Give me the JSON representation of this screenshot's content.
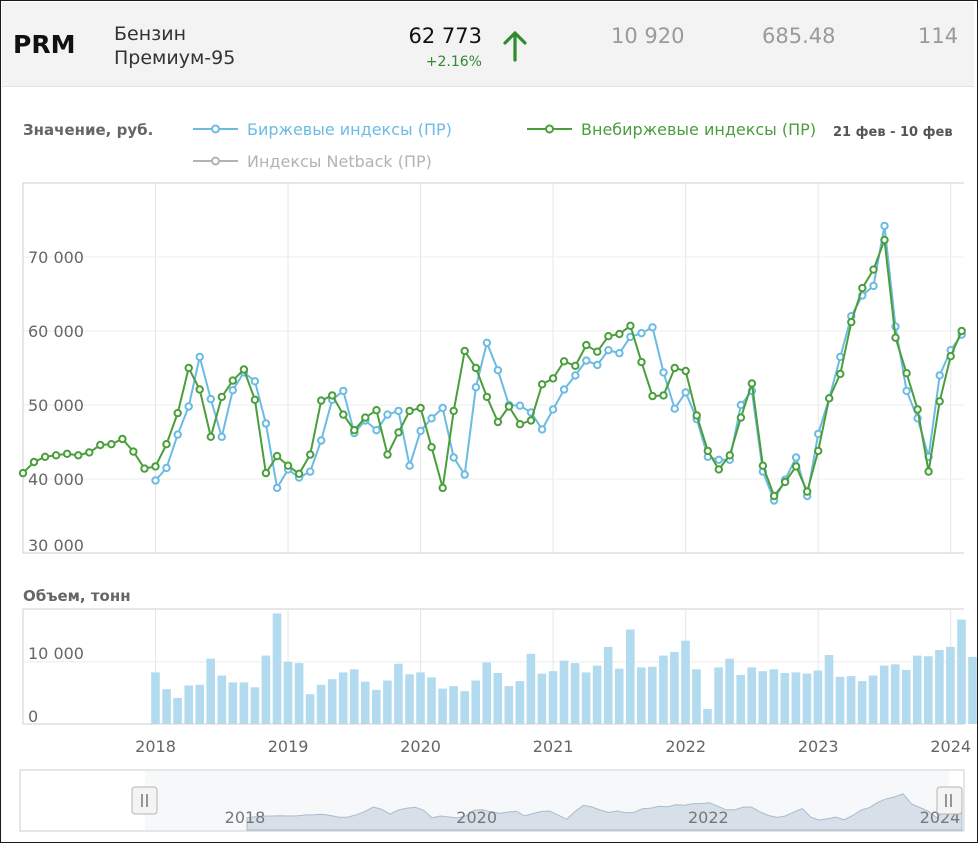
{
  "header": {
    "ticker": "PRM",
    "name_line1": "Бензин",
    "name_line2": "Премиум-95",
    "price": "62 773",
    "change": "+2.16%",
    "stat1": "10 920",
    "stat2": "685.48",
    "stat3": "114",
    "up_color": "#2e8b2e"
  },
  "chart_data": [
    {
      "type": "line",
      "title": "Значение, руб.",
      "ylabel": "Значение, руб.",
      "date_range": "21 фев - 10 фев",
      "ylim": [
        30000,
        80000
      ],
      "yticks": [
        30000,
        40000,
        50000,
        60000,
        70000
      ],
      "ytick_labels": [
        "30 000",
        "40 000",
        "50 000",
        "60 000",
        "70 000"
      ],
      "xlim": [
        2017.0,
        2024.1
      ],
      "xticks": [
        2018,
        2019,
        2020,
        2021,
        2022,
        2023,
        2024
      ],
      "xtick_labels": [
        "2018",
        "2019",
        "2020",
        "2021",
        "2022",
        "2023",
        "2024"
      ],
      "series": [
        {
          "name": "Биржевые индексы (ПР)",
          "color": "#6bbbe3",
          "x": [
            2018.0,
            2018.083,
            2018.167,
            2018.25,
            2018.333,
            2018.417,
            2018.5,
            2018.583,
            2018.667,
            2018.75,
            2018.833,
            2018.917,
            2019.0,
            2019.083,
            2019.167,
            2019.25,
            2019.333,
            2019.417,
            2019.5,
            2019.583,
            2019.667,
            2019.75,
            2019.833,
            2019.917,
            2020.0,
            2020.083,
            2020.167,
            2020.25,
            2020.333,
            2020.417,
            2020.5,
            2020.583,
            2020.667,
            2020.75,
            2020.833,
            2020.917,
            2021.0,
            2021.083,
            2021.167,
            2021.25,
            2021.333,
            2021.417,
            2021.5,
            2021.583,
            2021.667,
            2021.75,
            2021.833,
            2021.917,
            2022.0,
            2022.083,
            2022.167,
            2022.25,
            2022.333,
            2022.417,
            2022.5,
            2022.583,
            2022.667,
            2022.75,
            2022.833,
            2022.917,
            2023.0,
            2023.083,
            2023.167,
            2023.25,
            2023.333,
            2023.417,
            2023.5,
            2023.583,
            2023.667,
            2023.75,
            2023.833,
            2023.917,
            2024.0,
            2024.083
          ],
          "values": [
            39800,
            41500,
            46000,
            49800,
            56500,
            50800,
            45700,
            52000,
            54400,
            53200,
            47500,
            38800,
            41300,
            40200,
            41000,
            45200,
            50700,
            51900,
            46200,
            47900,
            46600,
            48700,
            49200,
            41800,
            46500,
            48200,
            49600,
            42900,
            40600,
            52400,
            58400,
            54700,
            50000,
            49900,
            49000,
            46700,
            49400,
            52100,
            54000,
            56000,
            55400,
            57400,
            57000,
            59200,
            59700,
            60500,
            54400,
            49500,
            51700,
            48100,
            43000,
            42600,
            42600,
            50000,
            51900,
            41000,
            37100,
            39900,
            42900,
            37700,
            46100,
            50900,
            56500,
            62000,
            64800,
            66100,
            74200,
            60600,
            51900,
            48200,
            43000,
            54000,
            57400,
            59500
          ]
        },
        {
          "name": "Внебиржевые индексы (ПР)",
          "color": "#4a9e3c",
          "x": [
            2017.0,
            2017.083,
            2017.167,
            2017.25,
            2017.333,
            2017.417,
            2017.5,
            2017.583,
            2017.667,
            2017.75,
            2017.833,
            2017.917,
            2018.0,
            2018.083,
            2018.167,
            2018.25,
            2018.333,
            2018.417,
            2018.5,
            2018.583,
            2018.667,
            2018.75,
            2018.833,
            2018.917,
            2019.0,
            2019.083,
            2019.167,
            2019.25,
            2019.333,
            2019.417,
            2019.5,
            2019.583,
            2019.667,
            2019.75,
            2019.833,
            2019.917,
            2020.0,
            2020.083,
            2020.167,
            2020.25,
            2020.333,
            2020.417,
            2020.5,
            2020.583,
            2020.667,
            2020.75,
            2020.833,
            2020.917,
            2021.0,
            2021.083,
            2021.167,
            2021.25,
            2021.333,
            2021.417,
            2021.5,
            2021.583,
            2021.667,
            2021.75,
            2021.833,
            2021.917,
            2022.0,
            2022.083,
            2022.167,
            2022.25,
            2022.333,
            2022.417,
            2022.5,
            2022.583,
            2022.667,
            2022.75,
            2022.833,
            2022.917,
            2023.0,
            2023.083,
            2023.167,
            2023.25,
            2023.333,
            2023.417,
            2023.5,
            2023.583,
            2023.667,
            2023.75,
            2023.833,
            2023.917,
            2024.0,
            2024.083
          ],
          "values": [
            40800,
            42300,
            43000,
            43200,
            43400,
            43200,
            43600,
            44600,
            44700,
            45400,
            43700,
            41400,
            41700,
            44700,
            48900,
            55000,
            52100,
            45700,
            51100,
            53300,
            54800,
            50700,
            40800,
            43100,
            41800,
            40700,
            43300,
            50600,
            51300,
            48700,
            46600,
            48300,
            49300,
            43300,
            46300,
            49200,
            49600,
            44300,
            38800,
            49200,
            57300,
            55000,
            51100,
            47700,
            49800,
            47400,
            47900,
            52800,
            53600,
            55900,
            55300,
            58100,
            57200,
            59300,
            59600,
            60700,
            55800,
            51200,
            51300,
            55000,
            54600,
            48600,
            43800,
            41300,
            43200,
            48300,
            52900,
            41800,
            37700,
            39600,
            41700,
            38300,
            43800,
            50900,
            54200,
            61200,
            65800,
            68300,
            72300,
            59100,
            54300,
            49400,
            41000,
            50500,
            56600,
            60000
          ]
        },
        {
          "name": "Индексы Netback (ПР)",
          "color": "#b3b3b3",
          "x": [],
          "values": []
        }
      ]
    },
    {
      "type": "bar",
      "title": "Объем, тонн",
      "ylim": [
        0,
        18500
      ],
      "yticks": [
        0,
        10000
      ],
      "ytick_labels": [
        "0",
        "10 000"
      ],
      "color": "#b3dbef",
      "x_start": 2018.0,
      "x_step": 0.0833,
      "values": [
        8300,
        5600,
        4200,
        6200,
        6300,
        10500,
        7800,
        6700,
        6700,
        5900,
        11000,
        17800,
        10000,
        9800,
        4800,
        6300,
        7200,
        8300,
        8800,
        6800,
        5500,
        7000,
        9700,
        8000,
        8300,
        7500,
        5700,
        6100,
        5300,
        7000,
        9900,
        8200,
        6100,
        6900,
        11300,
        8100,
        8500,
        10200,
        9800,
        8300,
        9400,
        12400,
        8900,
        15200,
        9100,
        9200,
        11000,
        11600,
        13400,
        8800,
        2400,
        9100,
        10500,
        7900,
        9100,
        8500,
        8800,
        8200,
        8300,
        8100,
        8600,
        11100,
        7600,
        7700,
        6900,
        7800,
        9400,
        9600,
        8700,
        11000,
        10900,
        11900,
        12400,
        16800,
        10800
      ]
    },
    {
      "type": "area",
      "title": "navigator",
      "xtick_labels": [
        "2018",
        "2020",
        "2022",
        "2024"
      ],
      "color": "#dde4ec"
    }
  ]
}
